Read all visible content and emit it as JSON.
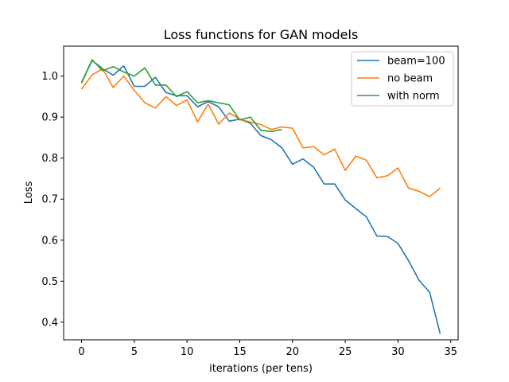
{
  "chart_data": {
    "type": "line",
    "title": "Loss functions for GAN models",
    "xlabel": "iterations (per tens)",
    "ylabel": "Loss",
    "xlim": [
      -1.7,
      35.7
    ],
    "ylim": [
      0.357,
      1.073
    ],
    "xticks": [
      0,
      5,
      10,
      15,
      20,
      25,
      30,
      35
    ],
    "yticks": [
      0.4,
      0.5,
      0.6,
      0.7,
      0.8,
      0.9,
      1.0
    ],
    "xtick_labels": [
      "0",
      "5",
      "10",
      "15",
      "20",
      "25",
      "30",
      "35"
    ],
    "ytick_labels": [
      "0.4",
      "0.5",
      "0.6",
      "0.7",
      "0.8",
      "0.9",
      "1.0"
    ],
    "grid": false,
    "legend_position": "top-right",
    "series": [
      {
        "name": "beam=100",
        "color": "#1f77b4",
        "x": [
          0,
          1,
          2,
          3,
          4,
          5,
          6,
          7,
          8,
          9,
          10,
          11,
          12,
          13,
          14,
          15,
          16,
          17,
          18,
          19,
          20,
          21,
          22,
          23,
          24,
          25,
          26,
          27,
          28,
          29,
          30,
          31,
          32,
          33,
          34
        ],
        "y": [
          0.985,
          1.038,
          1.018,
          1.002,
          1.025,
          0.975,
          0.975,
          0.997,
          0.96,
          0.952,
          0.952,
          0.925,
          0.938,
          0.925,
          0.89,
          0.895,
          0.885,
          0.855,
          0.845,
          0.825,
          0.785,
          0.798,
          0.778,
          0.737,
          0.737,
          0.698,
          0.677,
          0.657,
          0.61,
          0.609,
          0.592,
          0.55,
          0.502,
          0.473,
          0.372
        ]
      },
      {
        "name": "no beam",
        "color": "#ff7f0e",
        "x": [
          0,
          1,
          2,
          3,
          4,
          5,
          6,
          7,
          8,
          9,
          10,
          11,
          12,
          13,
          14,
          15,
          16,
          17,
          18,
          19,
          20,
          21,
          22,
          23,
          24,
          25,
          26,
          27,
          28,
          29,
          30,
          31,
          32,
          33,
          34
        ],
        "y": [
          0.968,
          1.003,
          1.018,
          0.972,
          1.0,
          0.965,
          0.935,
          0.922,
          0.95,
          0.928,
          0.942,
          0.888,
          0.932,
          0.883,
          0.91,
          0.895,
          0.888,
          0.882,
          0.87,
          0.876,
          0.873,
          0.825,
          0.828,
          0.808,
          0.822,
          0.77,
          0.805,
          0.795,
          0.752,
          0.757,
          0.776,
          0.727,
          0.719,
          0.706,
          0.727
        ]
      },
      {
        "name": "with norm",
        "color": "#2ca02c",
        "x": [
          0,
          1,
          2,
          3,
          4,
          5,
          6,
          7,
          8,
          9,
          10,
          11,
          12,
          13,
          14,
          15,
          16,
          17,
          18,
          19
        ],
        "y": [
          0.983,
          1.04,
          1.013,
          1.023,
          1.01,
          1.0,
          1.02,
          0.978,
          0.978,
          0.95,
          0.962,
          0.935,
          0.94,
          0.935,
          0.93,
          0.893,
          0.9,
          0.868,
          0.865,
          0.87
        ]
      }
    ]
  }
}
